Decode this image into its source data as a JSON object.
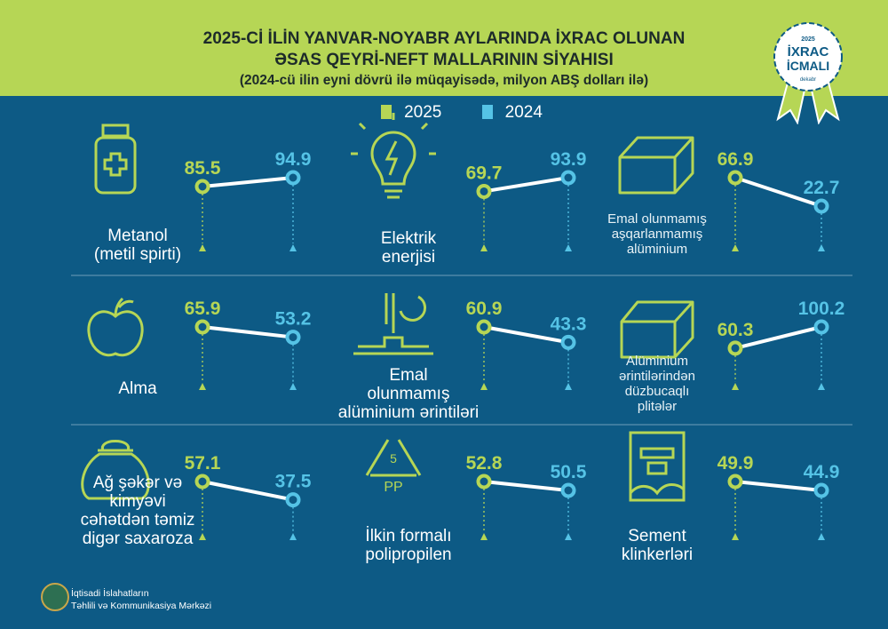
{
  "header": {
    "title_line1": "2025-Cİ İLİN YANVAR-NOYABR AYLARINDA İXRAC OLUNAN",
    "title_line2": "ƏSAS QEYRİ-NEFT MALLARININ SİYAHISI",
    "subtitle": "(2024-cü ilin eyni dövrü ilə müqayisədə, milyon ABŞ dolları ilə)"
  },
  "badge": {
    "year": "2025",
    "line1": "İXRAC",
    "line2": "İCMALI",
    "month": "dekabr"
  },
  "colors": {
    "y2025": "#b6d655",
    "y2024": "#55c3e6",
    "background": "#0d5a85"
  },
  "footer": {
    "line1": "İqtisadi İslahatların",
    "line2": "Təhlili və Kommunikasiya Mərkəzi"
  },
  "chart_data": {
    "type": "slope",
    "series_names": [
      "2025",
      "2024"
    ],
    "items": [
      {
        "label": [
          "Metanol",
          "(metil spirti)"
        ],
        "icon": "medicine-bottle-icon",
        "v2025": 85.5,
        "v2024": 94.9
      },
      {
        "label": [
          "Elektrik",
          "enerjisi"
        ],
        "icon": "lightbulb-icon",
        "v2025": 69.7,
        "v2024": 93.9
      },
      {
        "label": [
          "Emal olunmamış",
          "aşqarlanmamış",
          "alüminium"
        ],
        "icon": "aluminium-ingot-icon",
        "v2025": 66.9,
        "v2024": 22.7
      },
      {
        "label": [
          "Alma"
        ],
        "icon": "apple-icon",
        "v2025": 65.9,
        "v2024": 53.2
      },
      {
        "label": [
          "Emal",
          "olunmamış",
          "alüminium ərintiləri"
        ],
        "icon": "molten-metal-icon",
        "v2025": 60.9,
        "v2024": 43.3
      },
      {
        "label": [
          "Alüminium",
          "ərintilərindən",
          "düzbucaqlı",
          "plitələr"
        ],
        "icon": "aluminium-plate-icon",
        "v2025": 60.3,
        "v2024": 100.2
      },
      {
        "label": [
          "Ağ şəkər və",
          "kimyəvi",
          "cəhətdən təmiz",
          "digər saxaroza"
        ],
        "icon": "sugar-sack-icon",
        "v2025": 57.1,
        "v2024": 37.5
      },
      {
        "label": [
          "İlkin formalı",
          "polipropilen"
        ],
        "icon": "recycle-pp-icon",
        "v2025": 52.8,
        "v2024": 50.5
      },
      {
        "label": [
          "Sement",
          "klinkerləri"
        ],
        "icon": "cement-bag-icon",
        "v2025": 49.9,
        "v2024": 44.9
      }
    ]
  }
}
